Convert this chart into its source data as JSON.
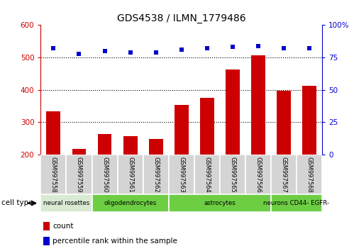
{
  "title": "GDS4538 / ILMN_1779486",
  "samples": [
    "GSM997558",
    "GSM997559",
    "GSM997560",
    "GSM997561",
    "GSM997562",
    "GSM997563",
    "GSM997564",
    "GSM997565",
    "GSM997566",
    "GSM997567",
    "GSM997568"
  ],
  "counts": [
    334,
    218,
    262,
    256,
    248,
    352,
    375,
    462,
    507,
    397,
    413
  ],
  "percentile": [
    82,
    78,
    80,
    79,
    79,
    81,
    82,
    83,
    84,
    82,
    82
  ],
  "cell_groups": [
    {
      "label": "neural rosettes",
      "start": 0,
      "end": 2,
      "color": "#d9ead3"
    },
    {
      "label": "oligodendrocytes",
      "start": 2,
      "end": 5,
      "color": "#6dce44"
    },
    {
      "label": "astrocytes",
      "start": 5,
      "end": 9,
      "color": "#6dce44"
    },
    {
      "label": "neurons CD44- EGFR-",
      "start": 9,
      "end": 11,
      "color": "#6dce44"
    }
  ],
  "ylim_left": [
    200,
    600
  ],
  "ylim_right": [
    0,
    100
  ],
  "yticks_left": [
    200,
    300,
    400,
    500,
    600
  ],
  "yticks_right": [
    0,
    25,
    50,
    75,
    100
  ],
  "bar_color": "#cc0000",
  "dot_color": "#0000cc",
  "sample_box_color": "#d4d4d4",
  "legend_items": [
    {
      "label": "count",
      "color": "#cc0000"
    },
    {
      "label": "percentile rank within the sample",
      "color": "#0000cc"
    }
  ]
}
